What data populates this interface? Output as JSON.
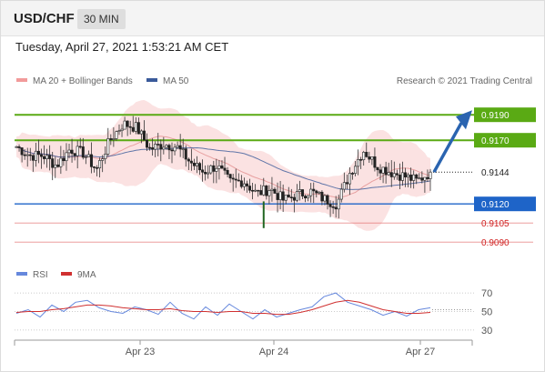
{
  "header": {
    "symbol": "USD/CHF",
    "interval": "30 MIN"
  },
  "datetime": "Tuesday, April 27, 2021 1:53:21 AM CET",
  "legend": {
    "ma20_bb": "MA 20 + Bollinger Bands",
    "ma50": "MA 50",
    "credit": "Research © 2021 Trading Central",
    "rsi": "RSI",
    "rsi_ma": "9MA"
  },
  "colors": {
    "resistance": "#5aaa14",
    "support": "#1e64c8",
    "support_minor": "#e06060",
    "current": "#222222",
    "bollinger": "#f8caca",
    "ma20": "#e8a0a0",
    "ma50": "#3a5a9a",
    "rsi": "#6688dd",
    "rsi_ma": "#d03030",
    "arrow": "#2a64b0"
  },
  "chart_data": [
    {
      "type": "candlestick",
      "ylim": [
        0.9078,
        0.9208
      ],
      "x_ticks": [
        "Apr 23",
        "Apr 24",
        "Apr 27"
      ],
      "current_price": "0.9144",
      "levels": [
        {
          "label": "0.9190",
          "value": 0.919,
          "kind": "resistance"
        },
        {
          "label": "0.9170",
          "value": 0.917,
          "kind": "resistance"
        },
        {
          "label": "0.9120",
          "value": 0.912,
          "kind": "support"
        },
        {
          "label": "0.9105",
          "value": 0.9105,
          "kind": "support-minor"
        },
        {
          "label": "0.9090",
          "value": 0.909,
          "kind": "support-minor"
        }
      ],
      "price_path": [
        0.9165,
        0.9158,
        0.9158,
        0.915,
        0.9163,
        0.916,
        0.9147,
        0.917,
        0.9183,
        0.918,
        0.9163,
        0.9167,
        0.9165,
        0.9153,
        0.9145,
        0.915,
        0.9137,
        0.9138,
        0.9128,
        0.9132,
        0.9123,
        0.9127,
        0.913,
        0.9124,
        0.912,
        0.9145,
        0.9162,
        0.915,
        0.9145,
        0.9142,
        0.9138,
        0.9145
      ],
      "projection": {
        "from": 0.9145,
        "to": 0.919
      }
    },
    {
      "type": "line",
      "title": "RSI",
      "y_ticks": [
        70,
        50,
        30
      ],
      "ylim": [
        24,
        76
      ],
      "series": [
        {
          "name": "RSI",
          "values": [
            48,
            52,
            44,
            57,
            50,
            60,
            62,
            54,
            50,
            48,
            55,
            52,
            47,
            60,
            48,
            42,
            55,
            46,
            58,
            50,
            42,
            52,
            44,
            48,
            52,
            55,
            66,
            70,
            60,
            56,
            52,
            46,
            50,
            45,
            52,
            54
          ]
        },
        {
          "name": "9MA",
          "values": [
            49,
            50,
            50,
            52,
            53,
            55,
            57,
            57,
            56,
            54,
            53,
            52,
            52,
            53,
            51,
            50,
            50,
            49,
            50,
            50,
            48,
            48,
            47,
            47,
            49,
            52,
            56,
            60,
            62,
            60,
            56,
            52,
            50,
            48,
            48,
            49
          ]
        }
      ]
    }
  ]
}
